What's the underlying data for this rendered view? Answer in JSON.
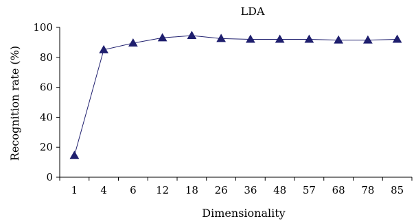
{
  "chart_data": {
    "type": "line",
    "title": "LDA",
    "xlabel": "Dimensionality",
    "ylabel": "Recognition rate (%)",
    "categories": [
      "1",
      "4",
      "6",
      "12",
      "18",
      "26",
      "36",
      "48",
      "57",
      "68",
      "78",
      "85"
    ],
    "series": [
      {
        "values": [
          14.5,
          85,
          89.5,
          93,
          94.5,
          92.5,
          92,
          92,
          92,
          91.5,
          91.5,
          92
        ],
        "color": "#1f1f6e",
        "marker": "triangle"
      }
    ],
    "yticks": [
      0,
      20,
      40,
      60,
      80,
      100
    ],
    "ylim": [
      0,
      100
    ],
    "grid": false,
    "legend": "none"
  }
}
